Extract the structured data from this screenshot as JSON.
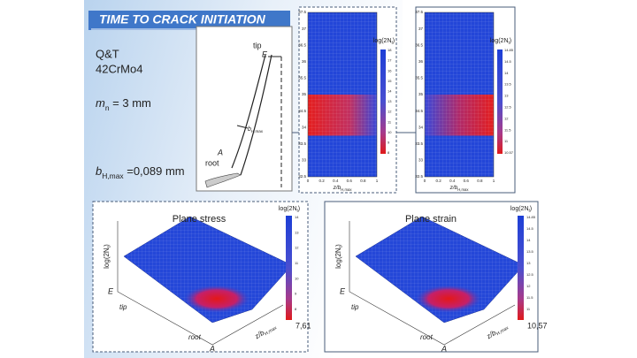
{
  "header": {
    "title": "TIME TO CRACK INITIATION"
  },
  "material": {
    "treatment": "Q&T",
    "steel": "42CrMo4"
  },
  "module": {
    "symbol": "m",
    "sub": "n",
    "rest": " = 3 mm"
  },
  "depth": {
    "symbol": "b",
    "sub": "H,max",
    "rest": " =0,089 mm"
  },
  "tooth": {
    "tip": "tip",
    "E": "E",
    "A": "A",
    "root": "root",
    "width": {
      "symbol": "b",
      "sub": "H,max"
    }
  },
  "maps": [
    {
      "legend": {
        "text": "log(2N",
        "sub": "f",
        "end": ")"
      },
      "yticks": [
        "37.5",
        "37",
        "36.5",
        "36",
        "35.5",
        "35",
        "34.5",
        "34",
        "33.5",
        "33",
        "32.5"
      ],
      "xticks": [
        "0",
        "0.2",
        "0.4",
        "0.6",
        "0.8",
        "1"
      ],
      "xlabel": {
        "symbol": "z/b",
        "sub": "H,max"
      },
      "cticks": [
        "18",
        "17",
        "16",
        "15",
        "14",
        "13",
        "12",
        "11",
        "10",
        "9",
        "8"
      ]
    },
    {
      "legend": {
        "text": "log(2N",
        "sub": "f",
        "end": ")"
      },
      "yticks": [
        "37.5",
        "37",
        "36.5",
        "36",
        "35.5",
        "35",
        "34.5",
        "34",
        "33.5",
        "33",
        "32.5"
      ],
      "xticks": [
        "0",
        "0.2",
        "0.4",
        "0.6",
        "0.8",
        "1"
      ],
      "xlabel": {
        "symbol": "z/b",
        "sub": "H,max"
      },
      "cticks": [
        "14.85",
        "14.5",
        "14",
        "13.5",
        "13",
        "12.5",
        "12",
        "11.5",
        "11",
        "10.57"
      ]
    }
  ],
  "surfaces": [
    {
      "title": "Plane stress",
      "legend": {
        "text": "log(2N",
        "sub": "f",
        "end": ")"
      },
      "min": "7,61",
      "cticks": [
        "14",
        "13",
        "12",
        "11",
        "10",
        "9",
        "8"
      ],
      "zlabel": {
        "text": "log(2N",
        "sub": "f",
        "end": ")"
      },
      "E": "E",
      "tip": "tip",
      "A": "A",
      "root": "root",
      "xlabel": {
        "symbol": "z/b",
        "sub": "H,max"
      }
    },
    {
      "title": "Plane strain",
      "legend": {
        "text": "log(2N",
        "sub": "f",
        "end": ")"
      },
      "min": "10,57",
      "cticks": [
        "14.85",
        "14.5",
        "14",
        "13.5",
        "13",
        "12.5",
        "12",
        "11.5",
        "11"
      ],
      "zlabel": {
        "text": "log(2N",
        "sub": "f",
        "end": ")"
      },
      "E": "E",
      "tip": "tip",
      "A": "A",
      "root": "root",
      "xlabel": {
        "symbol": "z/b",
        "sub": "H,max"
      }
    }
  ]
}
